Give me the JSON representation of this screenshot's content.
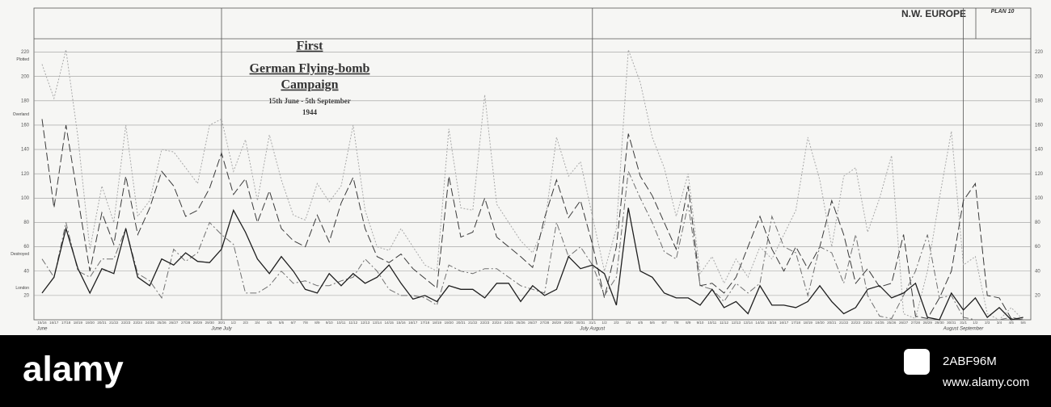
{
  "chart_data": {
    "type": "line",
    "title_lines": [
      "First",
      "German Flying-bomb",
      "Campaign",
      "15th June - 5th September",
      "1944"
    ],
    "header": "N.W. EUROPE",
    "plan": "PLAN 10",
    "categories": [
      "15/16",
      "16/17",
      "17/18",
      "18/19",
      "19/20",
      "20/21",
      "21/22",
      "22/23",
      "23/24",
      "24/25",
      "25/26",
      "26/27",
      "27/28",
      "28/29",
      "29/30",
      "30/1",
      "1/2",
      "2/3",
      "3/4",
      "4/5",
      "5/6",
      "6/7",
      "7/8",
      "8/9",
      "9/10",
      "10/11",
      "11/12",
      "12/13",
      "13/14",
      "14/15",
      "15/16",
      "16/17",
      "17/18",
      "18/19",
      "19/20",
      "20/21",
      "21/22",
      "22/23",
      "23/24",
      "24/25",
      "25/26",
      "26/27",
      "27/28",
      "28/29",
      "29/30",
      "30/31",
      "31/1",
      "1/2",
      "2/3",
      "3/4",
      "4/5",
      "5/6",
      "6/7",
      "7/8",
      "8/9",
      "9/10",
      "10/11",
      "11/12",
      "12/13",
      "13/14",
      "14/15",
      "15/16",
      "16/17",
      "17/18",
      "18/19",
      "19/20",
      "20/21",
      "21/22",
      "22/23",
      "23/24",
      "24/25",
      "25/26",
      "26/27",
      "27/28",
      "28/29",
      "29/30",
      "30/31",
      "31/1",
      "1/2",
      "2/3",
      "3/4",
      "4/5",
      "5/6"
    ],
    "month_labels": [
      "June",
      "June July",
      "July August",
      "August September"
    ],
    "series": [
      {
        "name": "Plotted",
        "color": "#a8a8a8",
        "dash": "2,2",
        "values": [
          210,
          182,
          222,
          150,
          58,
          110,
          80,
          160,
          85,
          98,
          140,
          138,
          125,
          112,
          160,
          165,
          122,
          148,
          98,
          152,
          115,
          86,
          82,
          112,
          97,
          110,
          160,
          90,
          60,
          57,
          75,
          60,
          45,
          40,
          157,
          92,
          90,
          185,
          95,
          80,
          65,
          55,
          78,
          150,
          118,
          130,
          85,
          40,
          75,
          222,
          195,
          150,
          125,
          85,
          120,
          38,
          52,
          30,
          50,
          35,
          60,
          50,
          70,
          90,
          150,
          115,
          60,
          118,
          125,
          72,
          100,
          135,
          5,
          1,
          40,
          100,
          155,
          45,
          52,
          5,
          0,
          10,
          0
        ]
      },
      {
        "name": "Overland",
        "color": "#3a3a3a",
        "dash": "10,4",
        "values": [
          165,
          92,
          160,
          100,
          40,
          88,
          62,
          118,
          70,
          92,
          122,
          110,
          85,
          90,
          108,
          137,
          103,
          116,
          80,
          106,
          75,
          65,
          60,
          86,
          64,
          96,
          117,
          75,
          52,
          47,
          54,
          42,
          34,
          26,
          118,
          68,
          72,
          100,
          68,
          60,
          52,
          43,
          84,
          115,
          84,
          98,
          62,
          18,
          60,
          153,
          118,
          102,
          80,
          58,
          110,
          28,
          30,
          22,
          35,
          60,
          85,
          58,
          40,
          60,
          42,
          60,
          98,
          70,
          30,
          42,
          27,
          30,
          70,
          3,
          1,
          18,
          40,
          98,
          112,
          20,
          18,
          1,
          0
        ]
      },
      {
        "name": "Destroyed",
        "color": "#707070",
        "dash": "8,3,2,3",
        "values": [
          50,
          35,
          80,
          40,
          35,
          50,
          50,
          75,
          38,
          32,
          18,
          58,
          48,
          55,
          80,
          70,
          62,
          22,
          22,
          28,
          40,
          30,
          32,
          28,
          28,
          32,
          35,
          50,
          40,
          25,
          20,
          20,
          18,
          12,
          45,
          40,
          38,
          42,
          42,
          35,
          28,
          25,
          22,
          80,
          52,
          60,
          45,
          20,
          35,
          122,
          100,
          80,
          56,
          50,
          95,
          28,
          25,
          15,
          30,
          22,
          30,
          85,
          60,
          55,
          20,
          60,
          55,
          30,
          70,
          20,
          3,
          1,
          20,
          40,
          70,
          18,
          20,
          2,
          0,
          0,
          0,
          2,
          0
        ]
      },
      {
        "name": "London",
        "color": "#1e1e1e",
        "dash": "",
        "values": [
          22,
          35,
          75,
          42,
          22,
          42,
          38,
          75,
          35,
          28,
          50,
          45,
          55,
          48,
          47,
          58,
          90,
          72,
          50,
          38,
          52,
          40,
          25,
          22,
          38,
          28,
          38,
          30,
          35,
          45,
          30,
          17,
          20,
          15,
          28,
          25,
          25,
          18,
          30,
          30,
          15,
          28,
          20,
          25,
          52,
          42,
          45,
          38,
          12,
          92,
          40,
          35,
          22,
          18,
          18,
          12,
          25,
          10,
          15,
          5,
          28,
          12,
          12,
          10,
          15,
          28,
          15,
          5,
          10,
          25,
          28,
          18,
          22,
          30,
          2,
          0,
          22,
          8,
          18,
          2,
          10,
          0,
          2
        ]
      }
    ],
    "ylim": [
      0,
      231
    ],
    "yticks": [
      20,
      40,
      60,
      80,
      100,
      120,
      140,
      160,
      180,
      200,
      220
    ],
    "grid": true,
    "watermark": {
      "brand": "alamy",
      "id": "2ABF96M",
      "url": "www.alamy.com"
    }
  }
}
